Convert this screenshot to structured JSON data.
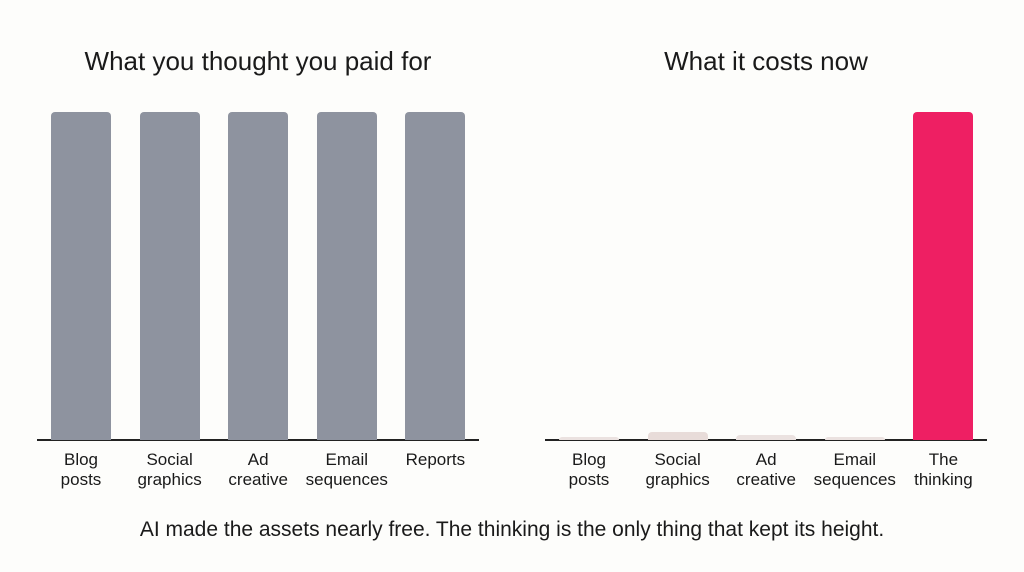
{
  "chart_data": [
    {
      "type": "bar",
      "title": "What you thought you paid for",
      "categories": [
        "Blog posts",
        "Social graphics",
        "Ad creative",
        "Email sequences",
        "Reports"
      ],
      "values": [
        100,
        100,
        100,
        100,
        100
      ],
      "colors": [
        "#8e939f",
        "#8e939f",
        "#8e939f",
        "#8e939f",
        "#8e939f"
      ]
    },
    {
      "type": "bar",
      "title": "What it costs now",
      "categories": [
        "Blog posts",
        "Social graphics",
        "Ad creative",
        "Email sequences",
        "The thinking"
      ],
      "values": [
        1,
        2.5,
        1.5,
        1,
        100
      ],
      "colors": [
        "#ebe2e0",
        "#e8dcd9",
        "#ebe2e0",
        "#ebe2e0",
        "#ee1f63"
      ]
    }
  ],
  "caption": "AI made the assets nearly free. The thinking is the only thing that kept its height."
}
